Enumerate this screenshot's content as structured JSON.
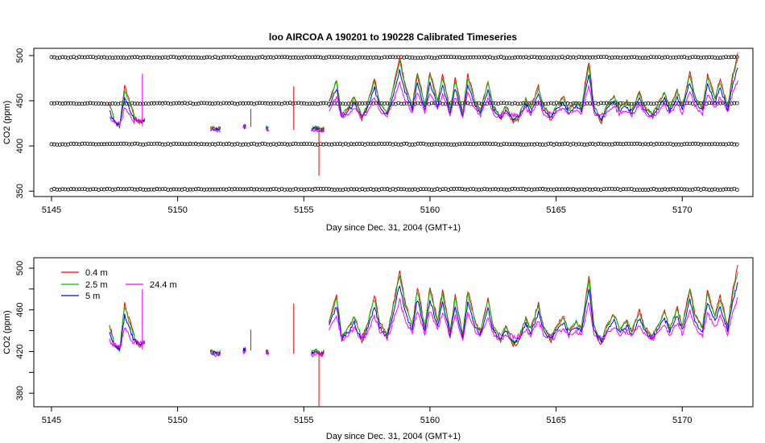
{
  "chart_data": [
    {
      "type": "line",
      "title": "loo   AIRCOA  A    190201  to  190228   Calibrated Timeseries",
      "xlabel": "Day since Dec. 31, 2004 (GMT+1)",
      "ylabel": "CO2 (ppm)",
      "xlim": [
        5144.3,
        5172.8
      ],
      "ylim": [
        344,
        508
      ],
      "xticks": [
        5145,
        5150,
        5155,
        5160,
        5165,
        5170
      ],
      "yticks": [
        350,
        400,
        450,
        500
      ],
      "grid": false,
      "calibration_levels": [
        352,
        402,
        447,
        498
      ],
      "calibration_x_range": [
        5145.0,
        5172.2
      ],
      "series": [
        {
          "name": "0.4 m",
          "color": "#ff0000"
        },
        {
          "name": "2.5 m",
          "color": "#00c000"
        },
        {
          "name": "5 m",
          "color": "#0000ff"
        },
        {
          "name": "24.4 m",
          "color": "#ff00ff"
        }
      ],
      "segments": [
        {
          "x": [
            5147.3,
            5147.5,
            5147.7,
            5147.9,
            5148.1,
            5148.3,
            5148.5,
            5148.7
          ],
          "y": [
            442,
            425,
            420,
            462,
            445,
            430,
            425,
            428
          ]
        },
        {
          "x": [
            5151.3,
            5151.5,
            5151.7
          ],
          "y": [
            420,
            418,
            419
          ]
        },
        {
          "x": [
            5152.6,
            5152.7
          ],
          "y": [
            421,
            422
          ]
        },
        {
          "x": [
            5153.5,
            5153.6
          ],
          "y": [
            420,
            418
          ]
        },
        {
          "x": [
            5155.3,
            5155.5,
            5155.7,
            5155.8
          ],
          "y": [
            418,
            420,
            417,
            419
          ]
        },
        {
          "x": [
            5156.0,
            5156.3,
            5156.5,
            5156.8,
            5157.0,
            5157.3,
            5157.5,
            5157.8,
            5158.0,
            5158.3,
            5158.5,
            5158.8,
            5159.0,
            5159.3,
            5159.5,
            5159.8,
            5160.0,
            5160.3,
            5160.5,
            5160.8,
            5161.0,
            5161.3,
            5161.5,
            5161.8,
            5162.0,
            5162.3,
            5162.5,
            5162.8,
            5163.0,
            5163.3,
            5163.5,
            5163.8,
            5164.0,
            5164.3,
            5164.5,
            5164.8,
            5165.0,
            5165.3,
            5165.5,
            5165.8,
            5166.0,
            5166.3,
            5166.5,
            5166.8,
            5167.0,
            5167.3,
            5167.5,
            5167.8,
            5168.0,
            5168.3,
            5168.5,
            5168.8,
            5169.0,
            5169.3,
            5169.5,
            5169.8,
            5170.0,
            5170.3,
            5170.5,
            5170.8,
            5171.0,
            5171.3,
            5171.5,
            5171.8,
            5172.0,
            5172.2
          ],
          "y": [
            445,
            470,
            430,
            440,
            450,
            428,
            440,
            470,
            445,
            432,
            455,
            495,
            465,
            440,
            478,
            440,
            478,
            445,
            475,
            435,
            470,
            432,
            475,
            445,
            435,
            468,
            440,
            428,
            440,
            425,
            428,
            448,
            438,
            462,
            440,
            428,
            440,
            450,
            436,
            445,
            438,
            490,
            440,
            425,
            440,
            452,
            438,
            445,
            435,
            455,
            440,
            430,
            440,
            455,
            438,
            458,
            440,
            478,
            452,
            438,
            475,
            450,
            470,
            440,
            475,
            498
          ]
        }
      ],
      "spikes": [
        {
          "x": 5148.6,
          "y0": 422,
          "y1": 480,
          "color": "#ff00ff"
        },
        {
          "x": 5152.9,
          "y0": 421,
          "y1": 441,
          "color": "#ff0000"
        },
        {
          "x": 5154.6,
          "y0": 418,
          "y1": 466,
          "color": "#ff0000"
        },
        {
          "x": 5155.6,
          "y0": 367,
          "y1": 420,
          "color": "#ff0000"
        }
      ]
    },
    {
      "type": "line",
      "title": "",
      "xlabel": "Day since Dec. 31, 2004 (GMT+1)",
      "ylabel": "CO2 (ppm)",
      "xlim": [
        5144.3,
        5172.8
      ],
      "ylim": [
        367,
        510
      ],
      "xticks": [
        5145,
        5150,
        5155,
        5160,
        5165,
        5170
      ],
      "yticks": [
        380,
        400,
        420,
        440,
        460,
        480,
        500
      ],
      "ytick_labels": [
        "380",
        "",
        "420",
        "",
        "460",
        "",
        "500"
      ],
      "grid": false,
      "legend_position": "top-left",
      "series": [
        {
          "name": "0.4 m",
          "color": "#ff0000"
        },
        {
          "name": "2.5 m",
          "color": "#00c000"
        },
        {
          "name": "5 m",
          "color": "#0000ff"
        },
        {
          "name": "24.4 m",
          "color": "#ff00ff"
        }
      ],
      "segments": [
        {
          "x": [
            5147.3,
            5147.5,
            5147.7,
            5147.9,
            5148.1,
            5148.3,
            5148.5,
            5148.7
          ],
          "y": [
            442,
            425,
            420,
            462,
            445,
            430,
            425,
            428
          ]
        },
        {
          "x": [
            5151.3,
            5151.5,
            5151.7
          ],
          "y": [
            420,
            418,
            419
          ]
        },
        {
          "x": [
            5152.6,
            5152.7
          ],
          "y": [
            421,
            422
          ]
        },
        {
          "x": [
            5153.5,
            5153.6
          ],
          "y": [
            420,
            418
          ]
        },
        {
          "x": [
            5155.3,
            5155.5,
            5155.7,
            5155.8
          ],
          "y": [
            418,
            420,
            417,
            419
          ]
        },
        {
          "x": [
            5156.0,
            5156.3,
            5156.5,
            5156.8,
            5157.0,
            5157.3,
            5157.5,
            5157.8,
            5158.0,
            5158.3,
            5158.5,
            5158.8,
            5159.0,
            5159.3,
            5159.5,
            5159.8,
            5160.0,
            5160.3,
            5160.5,
            5160.8,
            5161.0,
            5161.3,
            5161.5,
            5161.8,
            5162.0,
            5162.3,
            5162.5,
            5162.8,
            5163.0,
            5163.3,
            5163.5,
            5163.8,
            5164.0,
            5164.3,
            5164.5,
            5164.8,
            5165.0,
            5165.3,
            5165.5,
            5165.8,
            5166.0,
            5166.3,
            5166.5,
            5166.8,
            5167.0,
            5167.3,
            5167.5,
            5167.8,
            5168.0,
            5168.3,
            5168.5,
            5168.8,
            5169.0,
            5169.3,
            5169.5,
            5169.8,
            5170.0,
            5170.3,
            5170.5,
            5170.8,
            5171.0,
            5171.3,
            5171.5,
            5171.8,
            5172.0,
            5172.2
          ],
          "y": [
            445,
            470,
            430,
            440,
            450,
            428,
            440,
            470,
            445,
            432,
            455,
            495,
            465,
            440,
            478,
            440,
            478,
            445,
            475,
            435,
            470,
            432,
            475,
            445,
            435,
            468,
            440,
            428,
            440,
            425,
            428,
            448,
            438,
            462,
            440,
            428,
            440,
            450,
            436,
            445,
            438,
            490,
            440,
            425,
            440,
            452,
            438,
            445,
            435,
            455,
            440,
            430,
            440,
            455,
            438,
            458,
            440,
            478,
            452,
            438,
            475,
            450,
            470,
            440,
            475,
            498
          ]
        }
      ],
      "spikes": [
        {
          "x": 5148.6,
          "y0": 422,
          "y1": 480,
          "color": "#ff00ff"
        },
        {
          "x": 5152.9,
          "y0": 421,
          "y1": 441,
          "color": "#ff0000"
        },
        {
          "x": 5154.6,
          "y0": 418,
          "y1": 466,
          "color": "#ff0000"
        },
        {
          "x": 5155.6,
          "y0": 367,
          "y1": 420,
          "color": "#ff0000"
        }
      ]
    }
  ]
}
